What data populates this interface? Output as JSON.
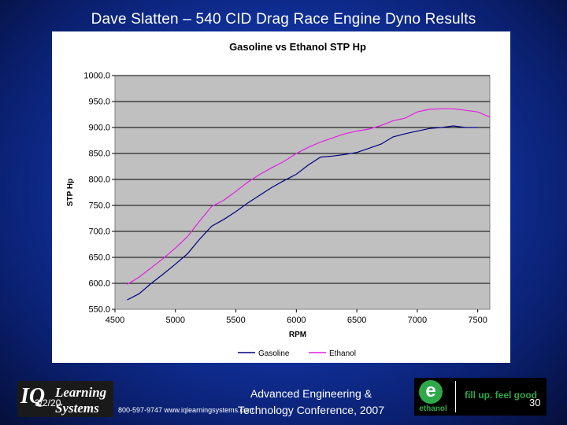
{
  "slide": {
    "title": "Dave Slatten – 540 CID Drag Race Engine Dyno Results",
    "date": "3/2/20",
    "contact": "800-597-9747  www.iqlearningsystems.com",
    "conference": "Advanced Engineering & Technology Conference, 2007",
    "page_number": "30"
  },
  "logos": {
    "left_mark": "IQ",
    "left_line1": "Learning",
    "left_line2": "Systems",
    "right_letter": "e",
    "right_word": "ethanol",
    "right_tagline": "fill up. feel good"
  },
  "chart_data": {
    "type": "line",
    "title": "Gasoline vs Ethanol STP Hp",
    "xlabel": "RPM",
    "ylabel": "STP Hp",
    "xlim": [
      4500,
      7600
    ],
    "ylim": [
      550,
      1000
    ],
    "xticks": [
      4500,
      5000,
      5500,
      6000,
      6500,
      7000,
      7500
    ],
    "yticks": [
      "550.0",
      "600.0",
      "650.0",
      "700.0",
      "750.0",
      "800.0",
      "850.0",
      "900.0",
      "950.0",
      "1000.0"
    ],
    "grid": "horizontal",
    "plot_background": "#c0c0c0",
    "legend": "bottom",
    "series": [
      {
        "name": "Gasoline",
        "color": "#000080",
        "x": [
          4600,
          4700,
          4800,
          4900,
          5000,
          5100,
          5200,
          5300,
          5400,
          5500,
          5600,
          5700,
          5800,
          5900,
          6000,
          6100,
          6200,
          6300,
          6400,
          6500,
          6600,
          6700,
          6800,
          6900,
          7000,
          7100,
          7200,
          7300,
          7400,
          7500
        ],
        "y": [
          568,
          580,
          600,
          618,
          637,
          657,
          685,
          710,
          723,
          738,
          755,
          770,
          785,
          798,
          810,
          828,
          843,
          845,
          848,
          852,
          860,
          868,
          882,
          888,
          893,
          898,
          900,
          903,
          900,
          900
        ]
      },
      {
        "name": "Ethanol",
        "color": "#e020e0",
        "x": [
          4600,
          4700,
          4800,
          4900,
          5000,
          5100,
          5200,
          5300,
          5400,
          5500,
          5600,
          5700,
          5800,
          5900,
          6000,
          6100,
          6200,
          6300,
          6400,
          6500,
          6600,
          6700,
          6800,
          6900,
          7000,
          7100,
          7200,
          7300,
          7400,
          7500,
          7600
        ],
        "y": [
          598,
          612,
          630,
          648,
          668,
          690,
          720,
          748,
          760,
          777,
          795,
          810,
          823,
          835,
          850,
          862,
          872,
          880,
          888,
          893,
          897,
          904,
          913,
          918,
          930,
          935,
          936,
          936,
          933,
          930,
          920
        ]
      }
    ]
  }
}
